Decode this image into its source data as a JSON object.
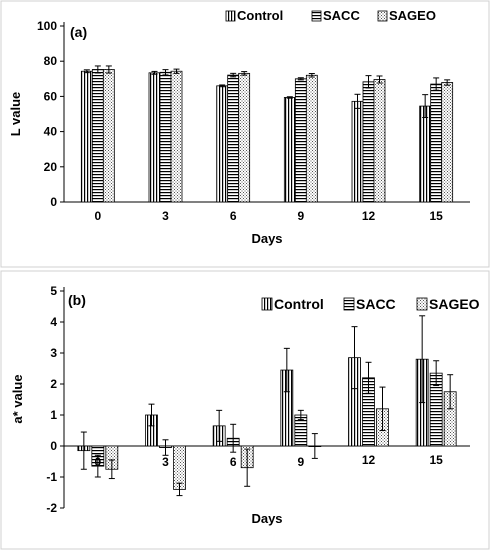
{
  "chart_data": [
    {
      "type": "bar",
      "panel_label": "(a)",
      "categories": [
        "0",
        "3",
        "6",
        "9",
        "12",
        "15"
      ],
      "xlabel": "Days",
      "ylabel": "L value",
      "ylim": [
        0,
        100
      ],
      "yticks": [
        "0",
        "20",
        "40",
        "60",
        "80",
        "100"
      ],
      "legend": "top-right",
      "grid": false,
      "series": [
        {
          "name": "Control",
          "pattern": "vertical",
          "values": [
            74.3,
            73.4,
            66.0,
            59.4,
            57.2,
            54.5
          ],
          "errors": [
            0.8,
            0.8,
            0.5,
            0.4,
            4.0,
            6.5
          ]
        },
        {
          "name": "SACC",
          "pattern": "horizontal",
          "values": [
            75.3,
            73.7,
            72.1,
            70.0,
            68.3,
            67.0
          ],
          "errors": [
            2.0,
            1.5,
            1.0,
            0.6,
            3.5,
            3.5
          ]
        },
        {
          "name": "SAGEO",
          "pattern": "dots",
          "values": [
            75.3,
            74.3,
            73.1,
            72.0,
            69.6,
            67.9
          ],
          "errors": [
            2.0,
            1.2,
            1.0,
            1.0,
            2.0,
            1.5
          ]
        }
      ]
    },
    {
      "type": "bar",
      "panel_label": "(b)",
      "categories": [
        "0",
        "3",
        "6",
        "9",
        "12",
        "15"
      ],
      "xlabel": "Days",
      "ylabel": "a* value",
      "ylim": [
        -2,
        5
      ],
      "yticks": [
        "-2",
        "-1",
        "0",
        "1",
        "2",
        "3",
        "4",
        "5"
      ],
      "legend": "top-right",
      "grid": false,
      "series": [
        {
          "name": "Control",
          "pattern": "vertical",
          "values": [
            -0.15,
            1.0,
            0.65,
            2.45,
            2.85,
            2.8
          ],
          "errors": [
            0.6,
            0.35,
            0.5,
            0.7,
            1.0,
            1.4
          ]
        },
        {
          "name": "SACC",
          "pattern": "horizontal",
          "values": [
            -0.65,
            -0.05,
            0.25,
            1.0,
            2.2,
            2.35
          ],
          "errors": [
            0.35,
            0.25,
            0.45,
            0.15,
            0.5,
            0.4
          ]
        },
        {
          "name": "SAGEO",
          "pattern": "dots",
          "values": [
            -0.75,
            -1.4,
            -0.7,
            0.0,
            1.2,
            1.75
          ],
          "errors": [
            0.3,
            0.2,
            0.6,
            0.4,
            0.7,
            0.55
          ]
        }
      ]
    }
  ]
}
